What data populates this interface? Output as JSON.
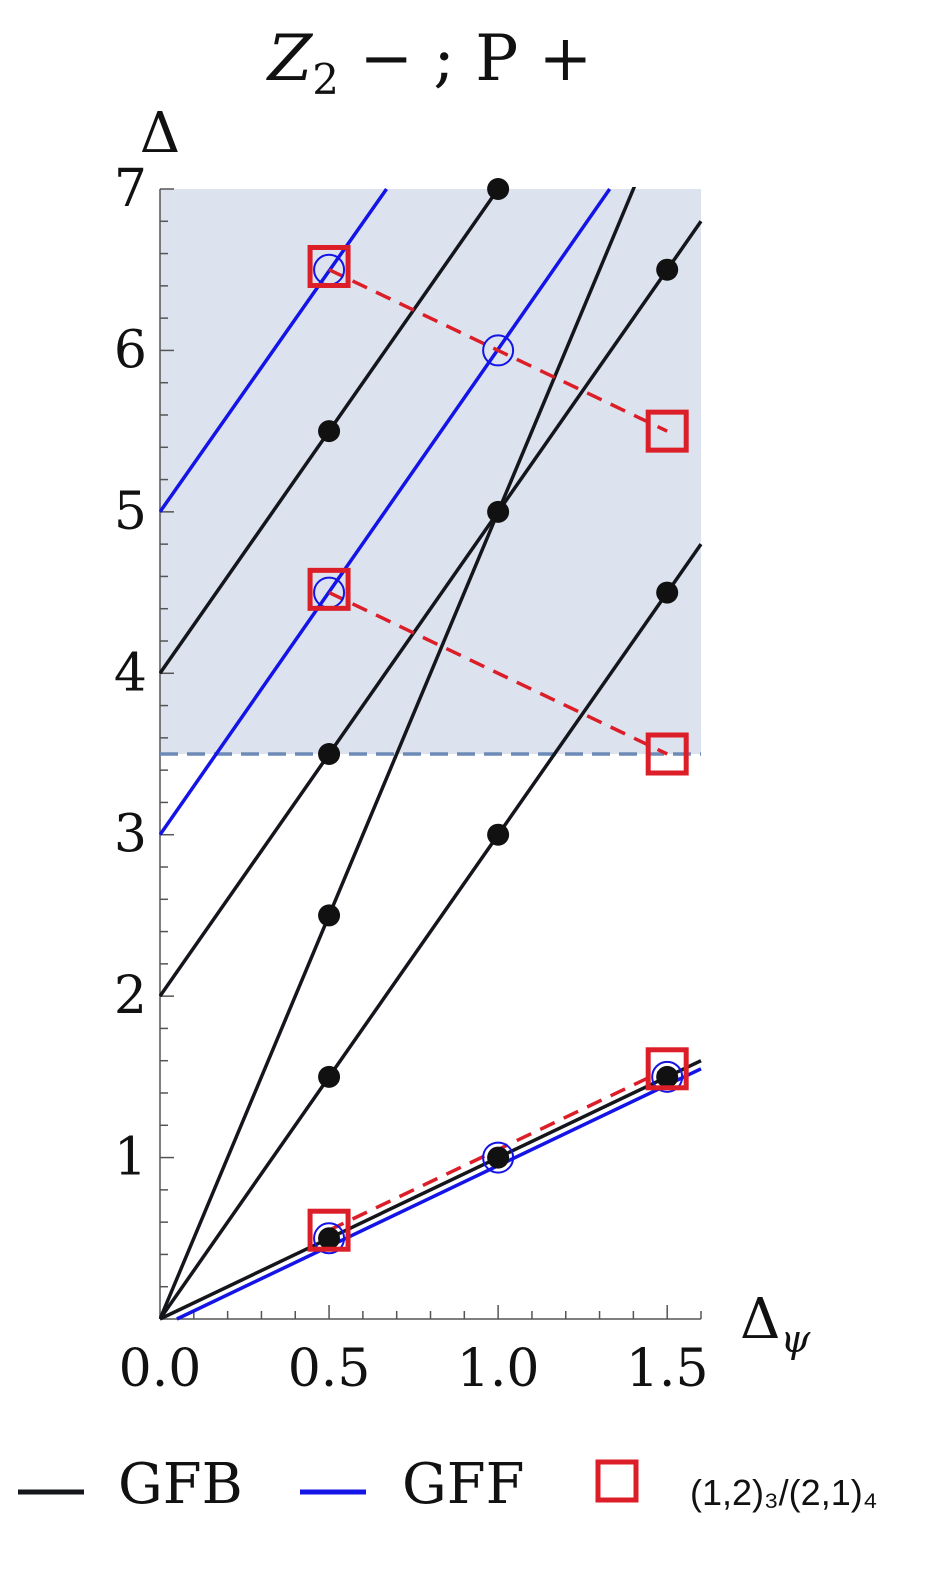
{
  "chart_data": {
    "type": "line",
    "title": {
      "main": "Z",
      "sub": "2",
      "rest": " − ; P +"
    },
    "ylabel": "Δ",
    "xlabel": {
      "main": "Δ",
      "sub": "ψ"
    },
    "xlim": [
      0,
      1.6
    ],
    "ylim": [
      0,
      7
    ],
    "xticks": [
      "0.0",
      "0.5",
      "1.0",
      "1.5"
    ],
    "yticks": [
      "1",
      "2",
      "3",
      "4",
      "5",
      "6",
      "7"
    ],
    "shaded_region": {
      "y_from": 3.5,
      "y_to": 7,
      "x_from": 0,
      "x_to": 1.6,
      "color": "#dde3ee"
    },
    "threshold_line": {
      "y": 3.5,
      "color": "#6e8bb8",
      "style": "dashed"
    },
    "colors": {
      "gfb": "#14161c",
      "gff": "#1414e6",
      "red": "#dc1e28"
    },
    "gfb_lines": [
      {
        "x": [
          0,
          1.6
        ],
        "y": [
          0,
          1.6
        ]
      },
      {
        "x": [
          0,
          1.6
        ],
        "y": [
          0,
          4.8
        ]
      },
      {
        "x": [
          0,
          1.45
        ],
        "y": [
          0,
          7.25
        ]
      },
      {
        "x": [
          0,
          1.6
        ],
        "y": [
          2,
          6.8
        ]
      },
      {
        "x": [
          0,
          1.0
        ],
        "y": [
          4,
          7
        ]
      }
    ],
    "gff_lines": [
      {
        "x": [
          0.05,
          1.6
        ],
        "y": [
          0,
          1.55
        ]
      },
      {
        "x": [
          0,
          1.33
        ],
        "y": [
          3,
          7
        ]
      },
      {
        "x": [
          0,
          0.67
        ],
        "y": [
          5,
          7
        ]
      }
    ],
    "gfb_points": [
      {
        "x": 0.5,
        "y": 0.5
      },
      {
        "x": 1.0,
        "y": 1.0
      },
      {
        "x": 1.5,
        "y": 1.5
      },
      {
        "x": 0.5,
        "y": 1.5
      },
      {
        "x": 1.0,
        "y": 3.0
      },
      {
        "x": 1.5,
        "y": 4.5
      },
      {
        "x": 0.5,
        "y": 2.5
      },
      {
        "x": 1.0,
        "y": 5.0
      },
      {
        "x": 0.5,
        "y": 3.5
      },
      {
        "x": 1.5,
        "y": 6.5
      },
      {
        "x": 0.5,
        "y": 5.5
      },
      {
        "x": 1.0,
        "y": 7.0
      }
    ],
    "gff_points": [
      {
        "x": 0.5,
        "y": 0.5
      },
      {
        "x": 1.0,
        "y": 1.0
      },
      {
        "x": 1.5,
        "y": 1.5
      },
      {
        "x": 0.5,
        "y": 4.5
      },
      {
        "x": 1.0,
        "y": 6.0
      },
      {
        "x": 0.5,
        "y": 6.5
      }
    ],
    "red_dashed_lines": [
      {
        "x": [
          0.5,
          1.5
        ],
        "y": [
          0.55,
          1.55
        ]
      },
      {
        "x": [
          0.5,
          1.5
        ],
        "y": [
          4.5,
          3.5
        ]
      },
      {
        "x": [
          0.5,
          1.0,
          1.5
        ],
        "y": [
          6.5,
          6.0,
          5.5
        ]
      }
    ],
    "red_squares": [
      {
        "x": 0.5,
        "y": 0.55
      },
      {
        "x": 1.5,
        "y": 1.55
      },
      {
        "x": 0.5,
        "y": 4.52
      },
      {
        "x": 1.5,
        "y": 3.5
      },
      {
        "x": 0.5,
        "y": 6.52
      },
      {
        "x": 1.5,
        "y": 5.5
      }
    ],
    "legend": {
      "placement": "bottom",
      "items": [
        {
          "label": "GFB",
          "marker": "line",
          "color": "#14161c"
        },
        {
          "label": "GFF",
          "marker": "line",
          "color": "#1414e6"
        },
        {
          "label": "(1,2)₃/(2,1)₄",
          "marker": "square",
          "color": "#dc1e28"
        }
      ]
    }
  }
}
